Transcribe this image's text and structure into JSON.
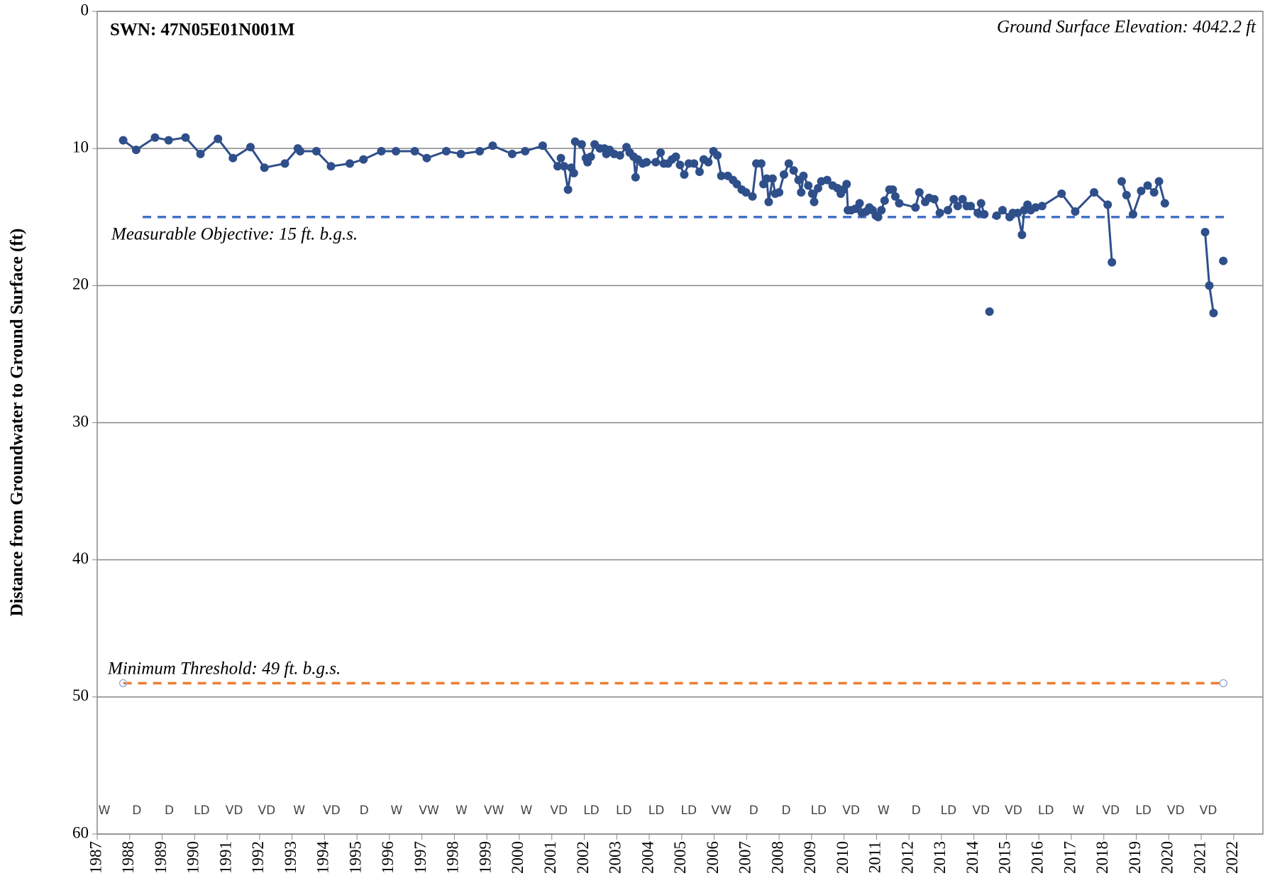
{
  "chart_data": {
    "type": "line",
    "title": "SWN: 47N05E01N001M",
    "annotation": "Ground Surface Elevation: 4042.2 ft",
    "ylabel": "Distance from Groundwater to Ground Surface (ft)",
    "y_inverted": true,
    "grid": true,
    "color": "#2f4f8a",
    "xlim": [
      1987,
      2022.9
    ],
    "xticks": [
      1987,
      1988,
      1989,
      1990,
      1991,
      1992,
      1993,
      1994,
      1995,
      1996,
      1997,
      1998,
      1999,
      2000,
      2001,
      2002,
      2003,
      2004,
      2005,
      2006,
      2007,
      2008,
      2009,
      2010,
      2011,
      2012,
      2013,
      2014,
      2015,
      2016,
      2017,
      2018,
      2019,
      2020,
      2021,
      2022
    ],
    "ylim": [
      0,
      60
    ],
    "yticks": [
      0,
      10,
      20,
      30,
      40,
      50,
      60
    ],
    "season_labels": [
      "W",
      "D",
      "D",
      "LD",
      "VD",
      "VD",
      "W",
      "VD",
      "D",
      "W",
      "VW",
      "W",
      "VW",
      "W",
      "VD",
      "LD",
      "LD",
      "LD",
      "LD",
      "VW",
      "D",
      "D",
      "LD",
      "VD",
      "W",
      "D",
      "LD",
      "VD",
      "VD",
      "LD",
      "W",
      "VD",
      "LD",
      "VD",
      "VD"
    ],
    "reference_lines": [
      {
        "label": "Measurable Objective: 15 ft. b.g.s.",
        "value": 15,
        "color": "#4472c4",
        "x": [
          1988.4,
          2021.75
        ]
      },
      {
        "label": "Minimum Threshold: 49 ft. b.g.s.",
        "value": 49,
        "color": "#ed7d31",
        "x": [
          1987.8,
          2021.68
        ]
      }
    ],
    "x": [
      1987.8,
      1988.2,
      1988.78,
      1989.2,
      1989.72,
      1990.18,
      1990.72,
      1991.18,
      1991.72,
      1992.15,
      1992.78,
      1993.18,
      1993.25,
      1993.75,
      1994.2,
      1994.78,
      1995.2,
      1995.75,
      1996.2,
      1996.78,
      1997.15,
      1997.75,
      1998.2,
      1998.78,
      1999.18,
      1999.78,
      2000.18,
      2000.72,
      2001.18,
      2001.28,
      2001.38,
      2001.5,
      2001.6,
      2001.68,
      2001.72,
      2001.92,
      2002.05,
      2002.1,
      2002.2,
      2002.32,
      2002.48,
      2002.62,
      2002.68,
      2002.78,
      2002.92,
      2003.1,
      2003.3,
      2003.4,
      2003.52,
      2003.58,
      2003.65,
      2003.8,
      2003.92,
      2004.2,
      2004.35,
      2004.45,
      2004.58,
      2004.7,
      2004.82,
      2004.95,
      2005.08,
      2005.22,
      2005.38,
      2005.55,
      2005.68,
      2005.82,
      2005.98,
      2006.1,
      2006.22,
      2006.42,
      2006.58,
      2006.7,
      2006.85,
      2006.98,
      2007.18,
      2007.3,
      2007.45,
      2007.52,
      2007.62,
      2007.68,
      2007.8,
      2007.88,
      2008.0,
      2008.15,
      2008.3,
      2008.45,
      2008.6,
      2008.68,
      2008.75,
      2008.9,
      2009.02,
      2009.08,
      2009.2,
      2009.3,
      2009.48,
      2009.65,
      2009.8,
      2009.9,
      2009.98,
      2010.08,
      2010.12,
      2010.22,
      2010.35,
      2010.48,
      2010.55,
      2010.68,
      2010.78,
      2010.88,
      2010.98,
      2011.05,
      2011.15,
      2011.25,
      2011.4,
      2011.5,
      2011.58,
      2011.7,
      2012.2,
      2012.32,
      2012.5,
      2012.62,
      2012.78,
      2012.95,
      2013.2,
      2013.38,
      2013.5,
      2013.65,
      2013.78,
      2013.9,
      2014.12,
      2014.22,
      2014.32,
      null,
      2014.48,
      null,
      2014.7,
      2014.88,
      2015.1,
      2015.2,
      2015.35,
      2015.48,
      2015.55,
      2015.65,
      2015.75,
      2015.9,
      2016.1,
      2016.7,
      2017.12,
      2017.7,
      2018.12,
      2018.25,
      null,
      2018.55,
      2018.7,
      2018.9,
      2019.15,
      2019.35,
      2019.55,
      2019.7,
      2019.88,
      null,
      2021.12,
      2021.25,
      2021.38,
      null,
      2021.68
    ],
    "values": [
      9.4,
      10.1,
      9.2,
      9.4,
      9.2,
      10.4,
      9.3,
      10.7,
      9.9,
      11.4,
      11.1,
      10.0,
      10.2,
      10.2,
      11.3,
      11.1,
      10.8,
      10.2,
      10.2,
      10.2,
      10.7,
      10.2,
      10.4,
      10.2,
      9.8,
      10.4,
      10.2,
      9.8,
      11.3,
      10.7,
      11.3,
      13.0,
      11.4,
      11.8,
      9.5,
      9.7,
      10.7,
      11.0,
      10.6,
      9.7,
      10.0,
      10.0,
      10.4,
      10.1,
      10.4,
      10.5,
      9.9,
      10.3,
      10.6,
      12.1,
      10.8,
      11.1,
      11.0,
      11.0,
      10.3,
      11.1,
      11.1,
      10.8,
      10.6,
      11.2,
      11.9,
      11.1,
      11.1,
      11.7,
      10.8,
      11.0,
      10.2,
      10.5,
      12.0,
      12.0,
      12.3,
      12.6,
      13.0,
      13.2,
      13.5,
      11.1,
      11.1,
      12.6,
      12.2,
      13.9,
      12.2,
      13.3,
      13.2,
      11.9,
      11.1,
      11.6,
      12.3,
      13.2,
      12.0,
      12.7,
      13.3,
      13.9,
      12.9,
      12.4,
      12.3,
      12.7,
      12.9,
      13.3,
      13.0,
      12.6,
      14.5,
      14.5,
      14.4,
      14.0,
      14.7,
      14.6,
      14.3,
      14.5,
      14.9,
      15.0,
      14.5,
      13.8,
      13.0,
      13.0,
      13.5,
      14.0,
      14.3,
      13.2,
      13.9,
      13.6,
      13.7,
      14.7,
      14.5,
      13.7,
      14.2,
      13.7,
      14.2,
      14.2,
      14.7,
      14.0,
      14.8,
      null,
      21.9,
      null,
      14.9,
      14.5,
      15.0,
      14.7,
      14.7,
      16.3,
      14.5,
      14.1,
      14.5,
      14.3,
      14.2,
      13.3,
      14.6,
      13.2,
      14.1,
      18.3,
      null,
      12.4,
      13.4,
      14.8,
      13.1,
      12.7,
      13.2,
      12.4,
      14.0,
      null,
      16.1,
      20.0,
      22.0,
      null,
      18.2
    ]
  }
}
